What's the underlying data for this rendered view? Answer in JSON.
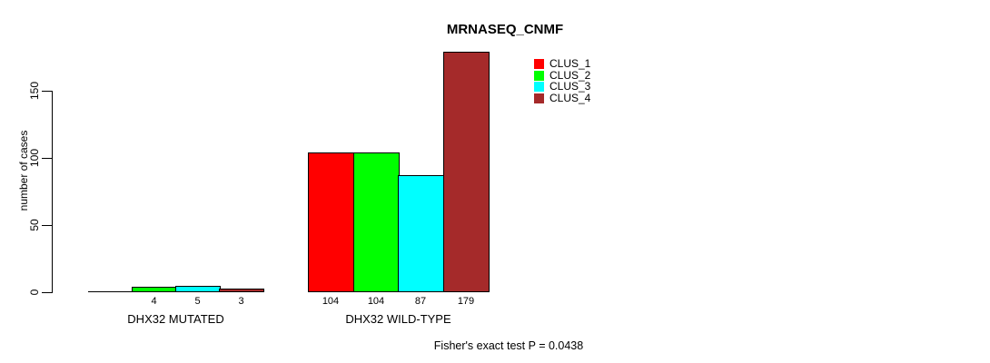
{
  "chart_data": {
    "type": "bar",
    "title": "MRNASEQ_CNMF",
    "ylabel": "number of cases",
    "ytick_values": [
      0,
      50,
      100,
      150
    ],
    "ylim": [
      0,
      185
    ],
    "grid": false,
    "legend_position": "top-right",
    "categories": [
      "DHX32 MUTATED",
      "DHX32 WILD-TYPE"
    ],
    "series": [
      {
        "name": "CLUS_1",
        "color": "#FF0000",
        "values": [
          0,
          104
        ]
      },
      {
        "name": "CLUS_2",
        "color": "#00FF00",
        "values": [
          4,
          104
        ]
      },
      {
        "name": "CLUS_3",
        "color": "#00FFFF",
        "values": [
          5,
          87
        ]
      },
      {
        "name": "CLUS_4",
        "color": "#A52A2A",
        "values": [
          3,
          179
        ]
      }
    ],
    "bar_value_labels": [
      "4",
      "5",
      "3",
      "104",
      "104",
      "87",
      "179"
    ],
    "annotation": "Fisher's exact test P = 0.0438"
  }
}
